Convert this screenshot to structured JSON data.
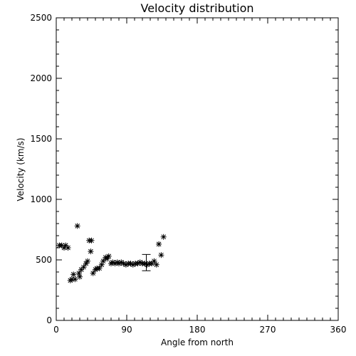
{
  "chart_data": {
    "type": "scatter",
    "title": "Velocity distribution",
    "xlabel": "Angle from north",
    "ylabel": "Velocity (km/s)",
    "xlim": [
      0,
      360
    ],
    "ylim": [
      0,
      2500
    ],
    "xticks": [
      "0",
      "90",
      "180",
      "270",
      "360"
    ],
    "yticks": [
      "0",
      "500",
      "1000",
      "1500",
      "2000",
      "2500"
    ],
    "xtick_values": [
      0,
      90,
      180,
      270,
      360
    ],
    "ytick_values": [
      0,
      500,
      1000,
      1500,
      2000,
      2500
    ],
    "grid": false,
    "marker": "asterisk",
    "points": [
      {
        "x": 4,
        "y": 620
      },
      {
        "x": 7,
        "y": 620
      },
      {
        "x": 10,
        "y": 600
      },
      {
        "x": 12,
        "y": 620
      },
      {
        "x": 15,
        "y": 600
      },
      {
        "x": 18,
        "y": 330
      },
      {
        "x": 20,
        "y": 340
      },
      {
        "x": 22,
        "y": 380
      },
      {
        "x": 24,
        "y": 340
      },
      {
        "x": 27,
        "y": 780
      },
      {
        "x": 29,
        "y": 390
      },
      {
        "x": 30,
        "y": 360
      },
      {
        "x": 32,
        "y": 420
      },
      {
        "x": 35,
        "y": 440
      },
      {
        "x": 38,
        "y": 470
      },
      {
        "x": 40,
        "y": 490
      },
      {
        "x": 42,
        "y": 660
      },
      {
        "x": 44,
        "y": 570
      },
      {
        "x": 45,
        "y": 660
      },
      {
        "x": 47,
        "y": 390
      },
      {
        "x": 50,
        "y": 420
      },
      {
        "x": 52,
        "y": 430
      },
      {
        "x": 55,
        "y": 430
      },
      {
        "x": 58,
        "y": 460
      },
      {
        "x": 60,
        "y": 490
      },
      {
        "x": 63,
        "y": 520
      },
      {
        "x": 65,
        "y": 510
      },
      {
        "x": 67,
        "y": 530
      },
      {
        "x": 70,
        "y": 470
      },
      {
        "x": 72,
        "y": 480
      },
      {
        "x": 75,
        "y": 470
      },
      {
        "x": 78,
        "y": 480
      },
      {
        "x": 80,
        "y": 470
      },
      {
        "x": 83,
        "y": 480
      },
      {
        "x": 86,
        "y": 470
      },
      {
        "x": 89,
        "y": 460
      },
      {
        "x": 92,
        "y": 470
      },
      {
        "x": 95,
        "y": 470
      },
      {
        "x": 98,
        "y": 460
      },
      {
        "x": 101,
        "y": 470
      },
      {
        "x": 104,
        "y": 470
      },
      {
        "x": 107,
        "y": 480
      },
      {
        "x": 110,
        "y": 470
      },
      {
        "x": 113,
        "y": 470
      },
      {
        "x": 116,
        "y": 460
      },
      {
        "x": 119,
        "y": 470
      },
      {
        "x": 122,
        "y": 470
      },
      {
        "x": 125,
        "y": 490
      },
      {
        "x": 128,
        "y": 460
      },
      {
        "x": 131,
        "y": 630
      },
      {
        "x": 134,
        "y": 540
      },
      {
        "x": 137,
        "y": 690
      }
    ],
    "error_bars": [
      {
        "x": 115,
        "y": 478,
        "low": 410,
        "high": 545
      }
    ]
  }
}
